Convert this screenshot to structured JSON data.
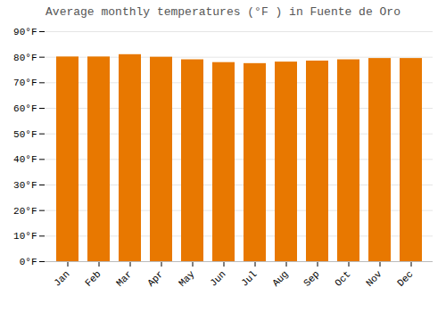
{
  "chart_data": {
    "type": "bar",
    "title": "Average monthly temperatures (°F ) in Fuente de Oro",
    "categories": [
      "Jan",
      "Feb",
      "Mar",
      "Apr",
      "May",
      "Jun",
      "Jul",
      "Aug",
      "Sep",
      "Oct",
      "Nov",
      "Dec"
    ],
    "values": [
      80.1,
      80.1,
      81.0,
      80.0,
      79.0,
      77.9,
      77.5,
      78.1,
      78.5,
      79.0,
      79.5,
      79.5
    ],
    "color": "#E87800",
    "ylim": [
      0,
      90
    ],
    "yticks": [
      {
        "value": 0,
        "label": "0°F"
      },
      {
        "value": 10,
        "label": "10°F"
      },
      {
        "value": 20,
        "label": "20°F"
      },
      {
        "value": 30,
        "label": "30°F"
      },
      {
        "value": 40,
        "label": "40°F"
      },
      {
        "value": 50,
        "label": "50°F"
      },
      {
        "value": 60,
        "label": "60°F"
      },
      {
        "value": 70,
        "label": "70°F"
      },
      {
        "value": 80,
        "label": "80°F"
      },
      {
        "value": 90,
        "label": "90°F"
      }
    ],
    "grid": true
  }
}
